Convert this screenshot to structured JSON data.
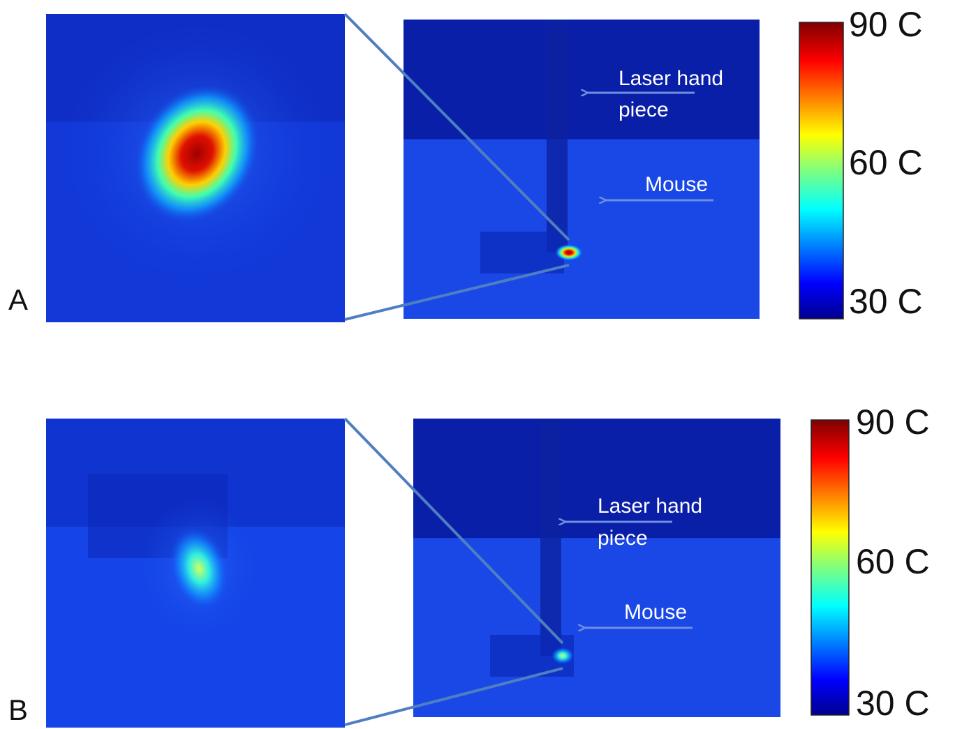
{
  "panels": [
    {
      "label": "A",
      "laser_label": [
        "Laser hand",
        "piece"
      ],
      "mouse_label": "Mouse",
      "colorbar_labels": [
        "90 C",
        "60 C",
        "30 C"
      ]
    },
    {
      "label": "B",
      "laser_label": [
        "Laser hand",
        "piece"
      ],
      "mouse_label": "Mouse",
      "colorbar_labels": [
        "90 C",
        "60 C",
        "30 C"
      ]
    }
  ]
}
